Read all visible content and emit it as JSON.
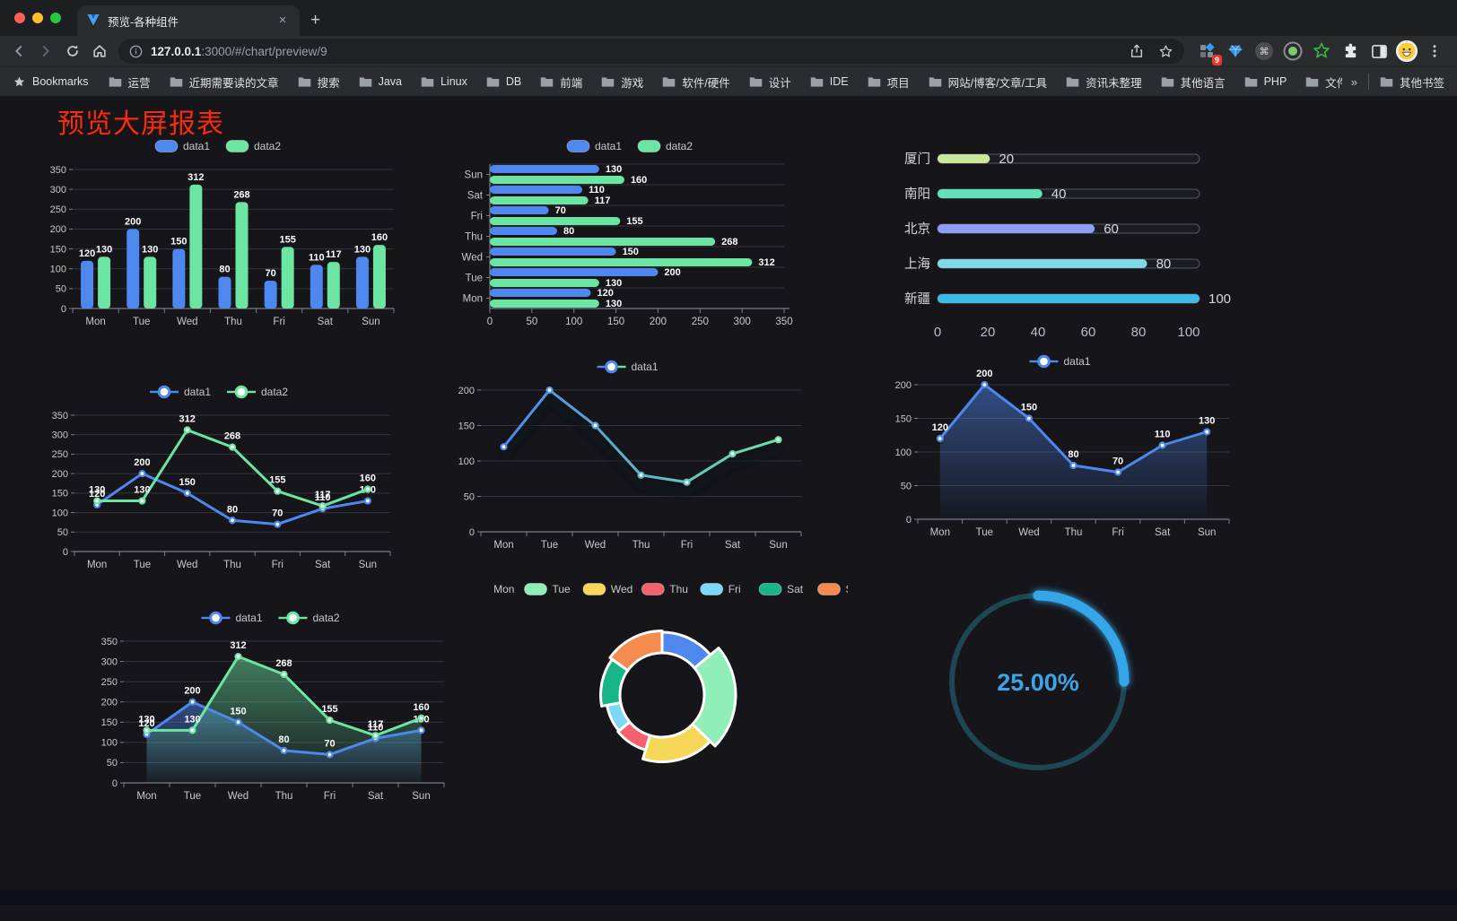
{
  "browser": {
    "tab_title": "预览-各种组件",
    "url_host": "127.0.0.1",
    "url_rest": ":3000/#/chart/preview/9",
    "extension_badge": "9",
    "bookmarks_label": "Bookmarks",
    "bookmarks": [
      "运营",
      "近期需要读的文章",
      "搜索",
      "Java",
      "Linux",
      "DB",
      "前端",
      "游戏",
      "软件/硬件",
      "设计",
      "IDE",
      "项目",
      "网站/博客/文章/工具",
      "资讯未整理",
      "其他语言",
      "PHP",
      "文件服务器"
    ],
    "bookmarks_overflow": "»",
    "other_bookmarks": "其他书签"
  },
  "page": {
    "title": "预览大屏报表",
    "title_color": "#fa2a0c",
    "background": "#15151a"
  },
  "chart_data": [
    {
      "id": "bar-grouped-vertical",
      "type": "bar",
      "title": "",
      "categories": [
        "Mon",
        "Tue",
        "Wed",
        "Thu",
        "Fri",
        "Sat",
        "Sun"
      ],
      "series": [
        {
          "name": "data1",
          "color": "#4E87EE",
          "values": [
            120,
            200,
            150,
            80,
            70,
            110,
            130
          ]
        },
        {
          "name": "data2",
          "color": "#6CE5A2",
          "values": [
            130,
            130,
            312,
            268,
            155,
            117,
            160
          ]
        }
      ],
      "ylim": [
        0,
        350
      ],
      "ytick": 50,
      "legend": [
        "data1",
        "data2"
      ],
      "legend_position": "top",
      "grid": true,
      "value_labels": true
    },
    {
      "id": "bar-grouped-horizontal",
      "type": "bar-horizontal",
      "categories": [
        "Mon",
        "Tue",
        "Wed",
        "Thu",
        "Fri",
        "Sat",
        "Sun"
      ],
      "series": [
        {
          "name": "data1",
          "color": "#4E87EE",
          "values": [
            120,
            200,
            150,
            80,
            70,
            110,
            130
          ]
        },
        {
          "name": "data2",
          "color": "#6CE5A2",
          "values": [
            130,
            130,
            312,
            268,
            155,
            117,
            160
          ]
        }
      ],
      "xlim": [
        0,
        350
      ],
      "xtick": 50,
      "legend": [
        "data1",
        "data2"
      ],
      "legend_position": "top",
      "grid": true,
      "value_labels": true
    },
    {
      "id": "city-progress",
      "type": "progress",
      "rows": [
        {
          "label": "厦门",
          "value": 20,
          "color": "#C9E89B"
        },
        {
          "label": "南阳",
          "value": 40,
          "color": "#63E2B7"
        },
        {
          "label": "北京",
          "value": 60,
          "color": "#8F9EF3"
        },
        {
          "label": "上海",
          "value": 80,
          "color": "#7FD9E8"
        },
        {
          "label": "新疆",
          "value": 100,
          "color": "#3FB9E6"
        }
      ],
      "max": 100,
      "axis_ticks": [
        0,
        20,
        40,
        60,
        80,
        100
      ]
    },
    {
      "id": "line-two-series",
      "type": "line",
      "categories": [
        "Mon",
        "Tue",
        "Wed",
        "Thu",
        "Fri",
        "Sat",
        "Sun"
      ],
      "series": [
        {
          "name": "data1",
          "color": "#4E87EE",
          "values": [
            120,
            200,
            150,
            80,
            70,
            110,
            130
          ]
        },
        {
          "name": "data2",
          "color": "#6CE5A2",
          "values": [
            130,
            130,
            312,
            268,
            155,
            117,
            160
          ]
        }
      ],
      "ylim": [
        0,
        350
      ],
      "ytick": 50,
      "legend": [
        "data1",
        "data2"
      ],
      "legend_position": "top",
      "grid": true,
      "value_labels": true
    },
    {
      "id": "line-gradient",
      "type": "line",
      "categories": [
        "Mon",
        "Tue",
        "Wed",
        "Thu",
        "Fri",
        "Sat",
        "Sun"
      ],
      "series": [
        {
          "name": "data1",
          "color": "#4E87EE",
          "color_end": "#6CE5A2",
          "values": [
            120,
            200,
            150,
            80,
            70,
            110,
            130
          ]
        }
      ],
      "ylim": [
        0,
        200
      ],
      "ytick": 50,
      "legend": [
        "data1"
      ],
      "legend_position": "top",
      "grid": true,
      "value_labels": false,
      "shadow": true
    },
    {
      "id": "area-single",
      "type": "line",
      "categories": [
        "Mon",
        "Tue",
        "Wed",
        "Thu",
        "Fri",
        "Sat",
        "Sun"
      ],
      "series": [
        {
          "name": "data1",
          "color": "#4E87EE",
          "values": [
            120,
            200,
            150,
            80,
            70,
            110,
            130
          ],
          "area": true
        }
      ],
      "ylim": [
        0,
        200
      ],
      "ytick": 50,
      "legend": [
        "data1"
      ],
      "legend_position": "top",
      "grid": true,
      "value_labels": true
    },
    {
      "id": "line-area-two",
      "type": "line",
      "categories": [
        "Mon",
        "Tue",
        "Wed",
        "Thu",
        "Fri",
        "Sat",
        "Sun"
      ],
      "series": [
        {
          "name": "data1",
          "color": "#4E87EE",
          "values": [
            120,
            200,
            150,
            80,
            70,
            110,
            130
          ],
          "area": true
        },
        {
          "name": "data2",
          "color": "#6CE5A2",
          "values": [
            130,
            130,
            312,
            268,
            155,
            117,
            160
          ],
          "area": true
        }
      ],
      "ylim": [
        0,
        350
      ],
      "ytick": 50,
      "legend": [
        "data1",
        "data2"
      ],
      "legend_position": "top",
      "grid": true,
      "value_labels": true
    },
    {
      "id": "week-donut",
      "type": "pie",
      "legend_position": "top",
      "items": [
        {
          "label": "Mon",
          "value": 120,
          "color": "#4E87EE"
        },
        {
          "label": "Tue",
          "value": 200,
          "color": "#8FEFB7"
        },
        {
          "label": "Wed",
          "value": 150,
          "color": "#F6D757"
        },
        {
          "label": "Thu",
          "value": 80,
          "color": "#F4606C"
        },
        {
          "label": "Fri",
          "value": 70,
          "color": "#7FD7F7"
        },
        {
          "label": "Sat",
          "value": 110,
          "color": "#18B687"
        },
        {
          "label": "Sun",
          "value": 130,
          "color": "#F58B4E"
        }
      ]
    },
    {
      "id": "percent-gauge",
      "type": "gauge",
      "value_label": "25.00%",
      "percent": 25,
      "color": "#34A6E8",
      "track_color": "#1D4752"
    }
  ]
}
